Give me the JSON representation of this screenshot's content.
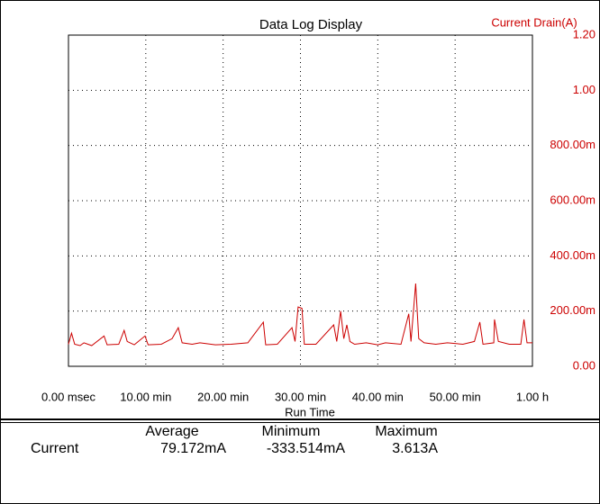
{
  "chart_data": {
    "type": "line",
    "title": "Data Log Display",
    "x_label": "Run Time",
    "y_label": "Current Drain(A)",
    "xlim": [
      0,
      60
    ],
    "ylim": [
      0,
      1.2
    ],
    "grid": true,
    "color": "#cc0000",
    "xticks": [
      {
        "value": 0,
        "label": "0.00 msec"
      },
      {
        "value": 10,
        "label": "10.00 min"
      },
      {
        "value": 20,
        "label": "20.00 min"
      },
      {
        "value": 30,
        "label": "30.00 min"
      },
      {
        "value": 40,
        "label": "40.00 min"
      },
      {
        "value": 50,
        "label": "50.00 min"
      },
      {
        "value": 60,
        "label": "1.00 h"
      }
    ],
    "yticks": [
      {
        "value": 0,
        "label": "0.00"
      },
      {
        "value": 0.2,
        "label": "200.00m"
      },
      {
        "value": 0.4,
        "label": "400.00m"
      },
      {
        "value": 0.6,
        "label": "600.00m"
      },
      {
        "value": 0.8,
        "label": "800.00m"
      },
      {
        "value": 1,
        "label": "1.00"
      },
      {
        "value": 1.2,
        "label": "1.20"
      }
    ],
    "x": [
      0,
      0.4,
      0.8,
      1.5,
      2,
      3,
      4.6,
      5,
      6.5,
      7.2,
      7.6,
      8.5,
      9.9,
      10.3,
      12,
      13.4,
      14.2,
      14.7,
      16,
      17,
      19,
      21,
      23.2,
      25.2,
      25.5,
      27,
      28.9,
      29.3,
      29.7,
      30.2,
      30.5,
      32,
      34.3,
      34.7,
      35.2,
      35.6,
      36,
      36.4,
      37,
      38.5,
      40,
      41,
      43,
      44,
      44.3,
      44.9,
      45.3,
      46,
      47.5,
      49,
      51,
      52.5,
      53.2,
      53.6,
      55,
      55.1,
      55.6,
      57,
      58.5,
      58.9,
      59.3,
      60
    ],
    "values": [
      0.08,
      0.12,
      0.08,
      0.075,
      0.085,
      0.075,
      0.11,
      0.078,
      0.08,
      0.13,
      0.09,
      0.078,
      0.11,
      0.078,
      0.08,
      0.1,
      0.14,
      0.085,
      0.08,
      0.085,
      0.078,
      0.08,
      0.085,
      0.16,
      0.078,
      0.08,
      0.14,
      0.09,
      0.215,
      0.21,
      0.08,
      0.08,
      0.15,
      0.09,
      0.2,
      0.1,
      0.15,
      0.09,
      0.08,
      0.085,
      0.078,
      0.085,
      0.08,
      0.19,
      0.09,
      0.3,
      0.1,
      0.085,
      0.08,
      0.085,
      0.08,
      0.09,
      0.16,
      0.08,
      0.085,
      0.17,
      0.09,
      0.08,
      0.08,
      0.17,
      0.085,
      0.085
    ]
  },
  "stats": {
    "headers": [
      "Average",
      "Minimum",
      "Maximum"
    ],
    "rows": [
      [
        "Current",
        "79.172mA",
        "-333.514mA",
        "3.613A"
      ]
    ]
  }
}
